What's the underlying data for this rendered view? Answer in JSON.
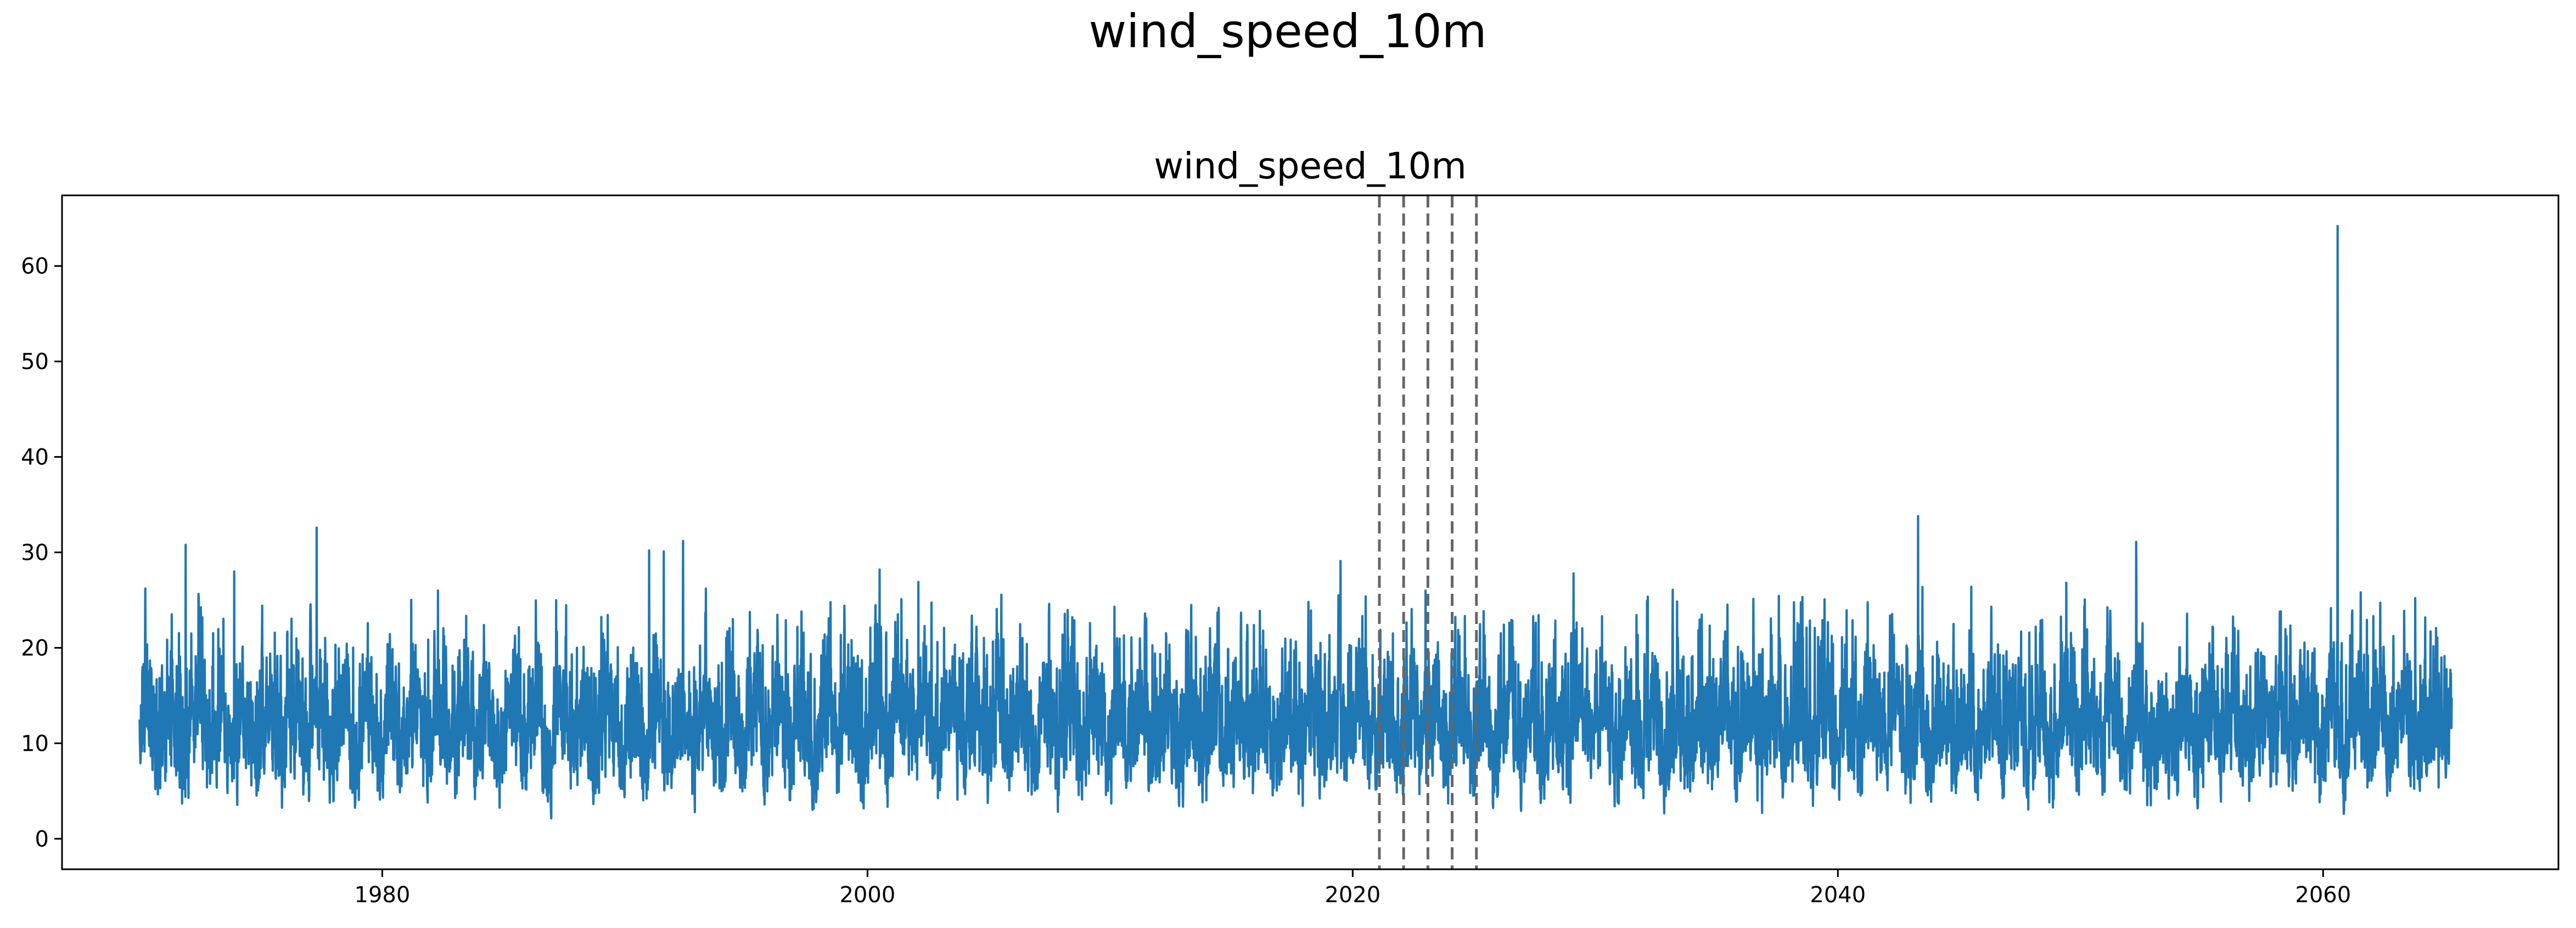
{
  "figure": {
    "suptitle": "wind_speed_10m"
  },
  "chart_data": {
    "type": "line",
    "title": "wind_speed_10m",
    "xlabel": "",
    "ylabel": "",
    "xlim": [
      1966.8,
      2069.7
    ],
    "ylim": [
      -3.2,
      67.4
    ],
    "x_ticks": [
      1980,
      2000,
      2020,
      2040,
      2060
    ],
    "y_ticks": [
      0,
      10,
      20,
      30,
      40,
      50,
      60
    ],
    "grid": false,
    "legend": "none",
    "series": [
      {
        "color": "#1f77b4",
        "x_range": [
          1970.0,
          2065.3
        ],
        "baseline_mean": 10,
        "typical_range": [
          0.5,
          24
        ],
        "peaks": [
          {
            "x": 1971.9,
            "y": 30.8
          },
          {
            "x": 1973.9,
            "y": 28.0
          },
          {
            "x": 1977.3,
            "y": 32.6
          },
          {
            "x": 1982.3,
            "y": 26.0
          },
          {
            "x": 1991.0,
            "y": 30.2
          },
          {
            "x": 1991.6,
            "y": 30.1
          },
          {
            "x": 1992.4,
            "y": 31.2
          },
          {
            "x": 2000.5,
            "y": 28.2
          },
          {
            "x": 2002.1,
            "y": 26.9
          },
          {
            "x": 2019.5,
            "y": 29.1
          },
          {
            "x": 2023.0,
            "y": 26.0
          },
          {
            "x": 2029.1,
            "y": 27.8
          },
          {
            "x": 2043.3,
            "y": 33.8
          },
          {
            "x": 2045.5,
            "y": 26.4
          },
          {
            "x": 2052.3,
            "y": 31.1
          },
          {
            "x": 2060.6,
            "y": 64.2
          },
          {
            "x": 2063.8,
            "y": 25.2
          }
        ]
      }
    ],
    "vlines": {
      "x": [
        2021.1,
        2022.1,
        2023.1,
        2024.1,
        2025.1
      ],
      "color": "#666666",
      "style": "dashed"
    }
  }
}
